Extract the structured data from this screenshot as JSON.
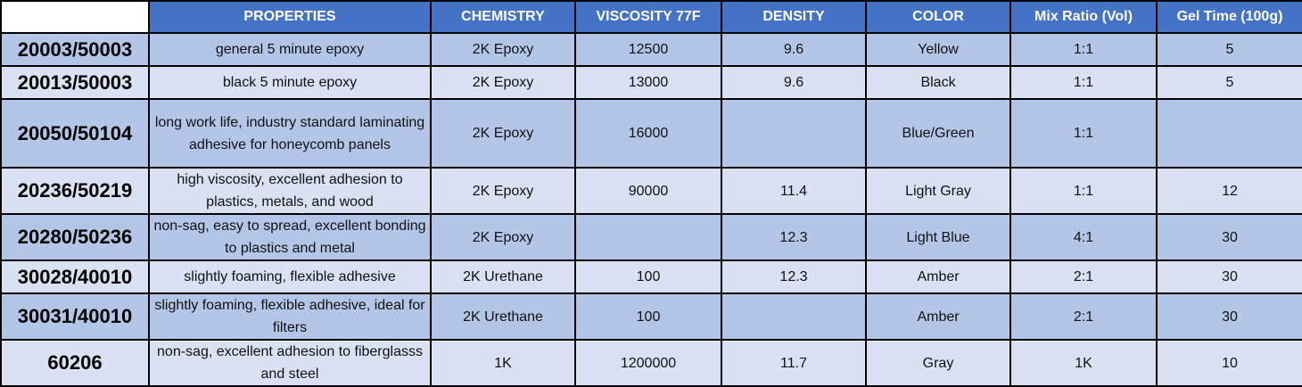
{
  "table": {
    "headers": [
      "",
      "PROPERTIES",
      "CHEMISTRY",
      "VISCOSITY 77F",
      "DENSITY",
      "COLOR",
      "Mix Ratio (Vol)",
      "Gel Time (100g)"
    ],
    "rows": [
      [
        "20003/50003",
        "general 5 minute epoxy",
        "2K Epoxy",
        "12500",
        "9.6",
        "Yellow",
        "1:1",
        "5"
      ],
      [
        "20013/50003",
        "black 5 minute epoxy",
        "2K Epoxy",
        "13000",
        "9.6",
        "Black",
        "1:1",
        "5"
      ],
      [
        "20050/50104",
        "long work life, industry standard laminating adhesive for honeycomb panels",
        "2K Epoxy",
        "16000",
        "",
        "Blue/Green",
        "1:1",
        ""
      ],
      [
        "20236/50219",
        "high viscosity, excellent adhesion to plastics, metals, and wood",
        "2K Epoxy",
        "90000",
        "11.4",
        "Light Gray",
        "1:1",
        "12"
      ],
      [
        "20280/50236",
        "non-sag, easy to spread, excellent bonding to plastics and metal",
        "2K Epoxy",
        "",
        "12.3",
        "Light Blue",
        "4:1",
        "30"
      ],
      [
        "30028/40010",
        "slightly foaming, flexible adhesive",
        "2K Urethane",
        "100",
        "12.3",
        "Amber",
        "2:1",
        "30"
      ],
      [
        "30031/40010",
        "slightly foaming, flexible adhesive, ideal for filters",
        "2K Urethane",
        "100",
        "",
        "Amber",
        "2:1",
        "30"
      ],
      [
        "60206",
        "non-sag, excellent adhesion to fiberglasss and steel",
        "1K",
        "1200000",
        "11.7",
        "Gray",
        "1K",
        "10"
      ]
    ]
  },
  "colors": {
    "header_bg": "#4472c4",
    "row_dark": "#b4c6e7",
    "row_light": "#d9e1f2"
  }
}
